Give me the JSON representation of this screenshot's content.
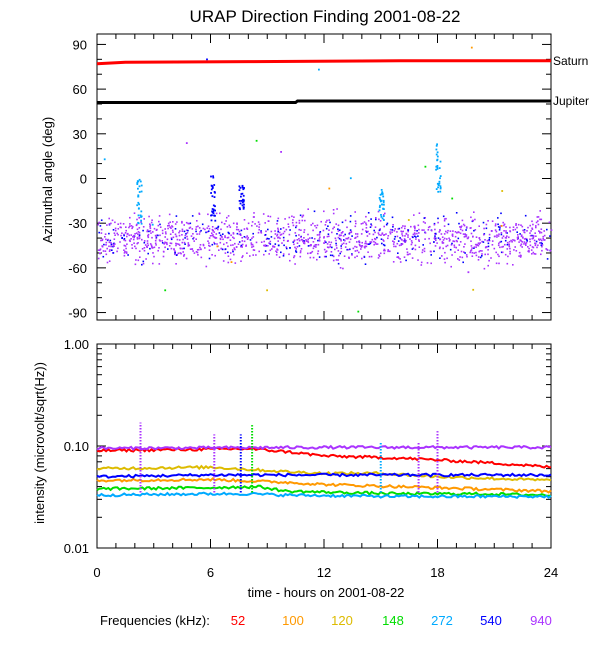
{
  "chart_data": [
    {
      "type": "scatter",
      "title": "URAP Direction Finding  2001-08-22",
      "ylabel": "Azimuthal angle (deg)",
      "xlabel": "",
      "xlim": [
        0,
        24
      ],
      "ylim": [
        -95,
        97
      ],
      "yticks": [
        "90",
        "60",
        "30",
        "0",
        "-30",
        "-60",
        "-90"
      ],
      "grid": false,
      "reference_lines": [
        {
          "name": "Saturn",
          "color": "#ff0000",
          "points": [
            [
              0,
              77
            ],
            [
              1.5,
              78
            ],
            [
              8,
              78.5
            ],
            [
              16,
              79
            ],
            [
              24,
              79
            ]
          ]
        },
        {
          "name": "Jupiter",
          "color": "#000000",
          "points": [
            [
              0,
              51
            ],
            [
              10.5,
              51
            ],
            [
              10.6,
              52
            ],
            [
              24,
              52
            ]
          ]
        }
      ],
      "bursts": [
        {
          "time": 2.2,
          "top": 0,
          "bottom": -30,
          "color": "#00aaff"
        },
        {
          "time": 6.1,
          "top": 4,
          "bottom": -28,
          "color": "#0000ff"
        },
        {
          "time": 7.6,
          "top": -3,
          "bottom": -22,
          "color": "#0000ff"
        },
        {
          "time": 15.0,
          "top": -5,
          "bottom": -28,
          "color": "#00aaff"
        },
        {
          "time": 18.0,
          "top": 24,
          "bottom": -10,
          "color": "#00aaff"
        }
      ],
      "band_center": -40,
      "band_spread": 22
    },
    {
      "type": "line",
      "xlabel": "time - hours on 2001-08-22",
      "ylabel": "intensity (microvolt/sqrt(Hz))",
      "xlim": [
        0,
        24
      ],
      "ylim": [
        0.01,
        1.0
      ],
      "yscale": "log",
      "xticks": [
        "0",
        "6",
        "12",
        "18",
        "24"
      ],
      "yticks": [
        "1.00",
        "0.10",
        "0.01"
      ],
      "grid": false,
      "series": [
        {
          "name": "52",
          "color": "#ff0000",
          "points": [
            [
              0,
              0.09
            ],
            [
              4,
              0.092
            ],
            [
              8,
              0.094
            ],
            [
              10,
              0.088
            ],
            [
              12,
              0.08
            ],
            [
              16,
              0.076
            ],
            [
              18,
              0.073
            ],
            [
              21,
              0.068
            ],
            [
              24,
              0.062
            ]
          ]
        },
        {
          "name": "100",
          "color": "#ff9900",
          "points": [
            [
              0,
              0.046
            ],
            [
              6,
              0.047
            ],
            [
              10,
              0.044
            ],
            [
              12,
              0.042
            ],
            [
              16,
              0.04
            ],
            [
              20,
              0.038
            ],
            [
              24,
              0.036
            ]
          ]
        },
        {
          "name": "120",
          "color": "#ddbb00",
          "points": [
            [
              0,
              0.06
            ],
            [
              6,
              0.062
            ],
            [
              10,
              0.056
            ],
            [
              12,
              0.054
            ],
            [
              15,
              0.054
            ],
            [
              18,
              0.05
            ],
            [
              24,
              0.046
            ]
          ]
        },
        {
          "name": "148",
          "color": "#00dd00",
          "points": [
            [
              0,
              0.038
            ],
            [
              6,
              0.039
            ],
            [
              8.5,
              0.04
            ],
            [
              10,
              0.036
            ],
            [
              16,
              0.034
            ],
            [
              20,
              0.034
            ],
            [
              24,
              0.033
            ]
          ]
        },
        {
          "name": "272",
          "color": "#00aaff",
          "points": [
            [
              0,
              0.033
            ],
            [
              6,
              0.034
            ],
            [
              8,
              0.034
            ],
            [
              10,
              0.033
            ],
            [
              16,
              0.032
            ],
            [
              20,
              0.032
            ],
            [
              24,
              0.032
            ]
          ]
        },
        {
          "name": "540",
          "color": "#0000ff",
          "points": [
            [
              0,
              0.05
            ],
            [
              6,
              0.052
            ],
            [
              10,
              0.052
            ],
            [
              16,
              0.052
            ],
            [
              24,
              0.052
            ]
          ]
        },
        {
          "name": "940",
          "color": "#aa33ff",
          "points": [
            [
              0,
              0.095
            ],
            [
              6,
              0.096
            ],
            [
              12,
              0.097
            ],
            [
              18,
              0.097
            ],
            [
              24,
              0.097
            ]
          ]
        }
      ],
      "spikes": [
        {
          "time": 2.3,
          "peak": 0.17,
          "color": "#aa33ff"
        },
        {
          "time": 6.2,
          "peak": 0.13,
          "color": "#aa33ff"
        },
        {
          "time": 7.6,
          "peak": 0.13,
          "color": "#0000ff"
        },
        {
          "time": 8.2,
          "peak": 0.16,
          "color": "#00dd00"
        },
        {
          "time": 15.0,
          "peak": 0.11,
          "color": "#00aaff"
        },
        {
          "time": 17.0,
          "peak": 0.11,
          "color": "#aa33ff"
        },
        {
          "time": 18.0,
          "peak": 0.14,
          "color": "#aa33ff"
        }
      ]
    }
  ],
  "footer": {
    "label": "Frequencies (kHz):",
    "items": [
      {
        "text": "52",
        "color": "#ff0000"
      },
      {
        "text": "100",
        "color": "#ff9900"
      },
      {
        "text": "120",
        "color": "#ddbb00"
      },
      {
        "text": "148",
        "color": "#00dd00"
      },
      {
        "text": "272",
        "color": "#00aaff"
      },
      {
        "text": "540",
        "color": "#0000ff"
      },
      {
        "text": "940",
        "color": "#aa33ff"
      }
    ]
  }
}
